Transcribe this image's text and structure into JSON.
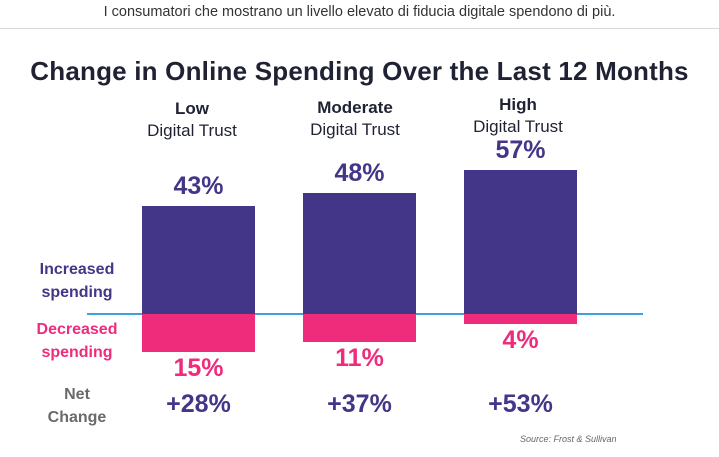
{
  "caption": "I consumatori che mostrano un livello elevato di fiducia digitale spendono di più.",
  "source": "Source: Frost & Sullivan",
  "colors": {
    "increased": "#433688",
    "decreased": "#ef2b7c",
    "baseline": "#3fa0e0",
    "net_label": "#6a6a6a"
  },
  "chart_data": {
    "type": "bar",
    "title": "Change in Online Spending Over the Last 12 Months",
    "categories": [
      {
        "line1": "Low",
        "line2": "Digital Trust"
      },
      {
        "line1": "Moderate",
        "line2": "Digital Trust"
      },
      {
        "line1": "High",
        "line2": "Digital Trust"
      }
    ],
    "row_labels": {
      "increased": [
        "Increased",
        "spending"
      ],
      "decreased": [
        "Decreased",
        "spending"
      ],
      "net": [
        "Net",
        "Change"
      ]
    },
    "series": [
      {
        "key": "increased",
        "values": [
          43,
          48,
          57
        ],
        "labels": [
          "43%",
          "48%",
          "57%"
        ]
      },
      {
        "key": "decreased",
        "values": [
          15,
          11,
          4
        ],
        "labels": [
          "15%",
          "11%",
          "4%"
        ]
      }
    ],
    "net_change": [
      "+28%",
      "+37%",
      "+53%"
    ]
  }
}
